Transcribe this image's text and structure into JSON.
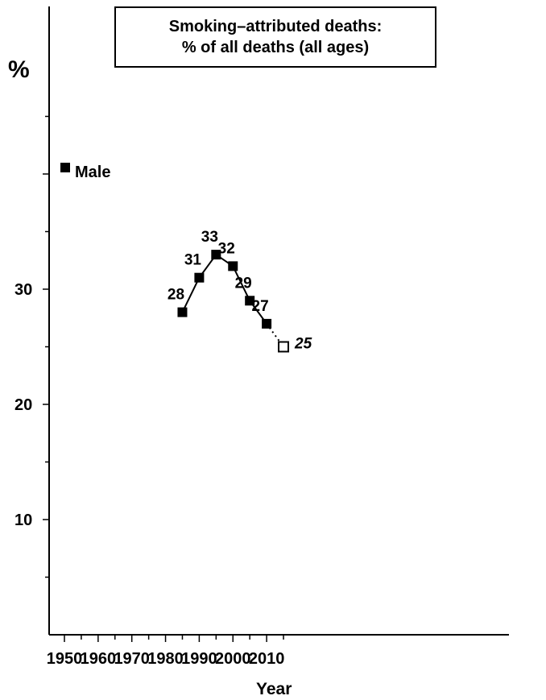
{
  "chart_data": {
    "type": "line",
    "title_line1": "Smoking–attributed deaths:",
    "title_line2": "% of all deaths (all ages)",
    "xlabel": "Year",
    "ylabel": "%",
    "xlim": [
      1950,
      2015
    ],
    "ylim": [
      0,
      50
    ],
    "x_ticks": [
      1950,
      1960,
      1970,
      1980,
      1990,
      2000,
      2010
    ],
    "y_ticks": [
      10,
      20,
      30
    ],
    "grid": false,
    "legend_position": "top-left",
    "series": [
      {
        "name": "Male",
        "color": "#000000",
        "points": [
          {
            "x": 1985,
            "y": 28,
            "label": "28"
          },
          {
            "x": 1990,
            "y": 31,
            "label": "31"
          },
          {
            "x": 1995,
            "y": 33,
            "label": "33"
          },
          {
            "x": 2000,
            "y": 32,
            "label": "32"
          },
          {
            "x": 2005,
            "y": 29,
            "label": "29"
          },
          {
            "x": 2010,
            "y": 27,
            "label": "27"
          }
        ],
        "projection": {
          "x": 2015,
          "y": 25,
          "label": "25"
        }
      }
    ]
  }
}
